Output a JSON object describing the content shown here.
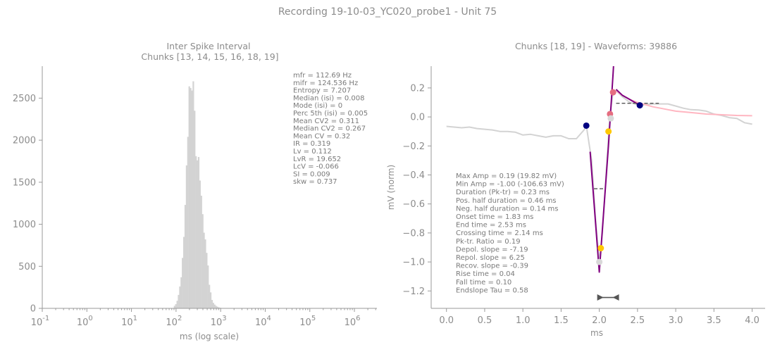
{
  "figure": {
    "title": "Recording 19-10-03_YC020_probe1 - Unit 75"
  },
  "chart_data": [
    {
      "type": "bar",
      "title": "Inter Spike Interval",
      "subtitle": "Chunks [13, 14, 15, 16, 18, 19]",
      "xlabel": "ms (log scale)",
      "ylabel": "",
      "xscale": "log",
      "xlim": [
        0.1,
        3200000
      ],
      "ylim": [
        0,
        2880
      ],
      "xtick_exponents": [
        "-1",
        "0",
        "1",
        "2",
        "3",
        "4",
        "5",
        "6"
      ],
      "yticks": [
        0,
        500,
        1000,
        1500,
        2000,
        2500
      ],
      "bar_color": "#d3d3d3",
      "bins_log10_ms": [
        1.95,
        1.98,
        2.01,
        2.04,
        2.07,
        2.1,
        2.13,
        2.16,
        2.19,
        2.22,
        2.25,
        2.28,
        2.31,
        2.34,
        2.37,
        2.4,
        2.43,
        2.46,
        2.49,
        2.52,
        2.55,
        2.58,
        2.61,
        2.64,
        2.67,
        2.7,
        2.73,
        2.76,
        2.79,
        2.82,
        2.85,
        2.88,
        2.91,
        2.94,
        2.97,
        3.0
      ],
      "counts": [
        30,
        50,
        90,
        160,
        260,
        370,
        600,
        850,
        1230,
        1700,
        2040,
        2640,
        2620,
        2590,
        2700,
        2350,
        1810,
        1760,
        1800,
        1520,
        1340,
        1120,
        900,
        820,
        660,
        510,
        280,
        190,
        100,
        65,
        45,
        30,
        20,
        12,
        8,
        5
      ],
      "stats": [
        "mfr = 112.69 Hz",
        "mifr = 124.536 Hz",
        "Entropy = 7.207",
        "Median (isi) = 0.008",
        "Mode (isi) = 0",
        "Perc 5th (isi) = 0.005",
        "Mean CV2 = 0.311",
        "Median CV2 = 0.267",
        "Mean CV = 0.32",
        "IR = 0.319",
        "Lv = 0.112",
        "LvR = 19.652",
        "LcV = -0.066",
        "SI = 0.009",
        "skw = 0.737"
      ]
    },
    {
      "type": "line",
      "title": "Chunks [18, 19] - Waveforms: 39886",
      "xlabel": "ms",
      "ylabel": "mV (norm)",
      "xlim": [
        -0.2,
        4.17
      ],
      "ylim": [
        -1.32,
        0.35
      ],
      "xticks": [
        0.0,
        0.5,
        1.0,
        1.5,
        2.0,
        2.5,
        3.0,
        3.5,
        4.0
      ],
      "yticks": [
        0.2,
        0.0,
        -0.2,
        -0.4,
        -0.6,
        -0.8,
        -1.0,
        -1.2
      ],
      "series": [
        {
          "color": "#d3d3d3",
          "x": [
            0.0,
            0.1,
            0.2,
            0.3,
            0.4,
            0.5,
            0.6,
            0.7,
            0.8,
            0.9,
            1.0,
            1.1,
            1.2,
            1.3,
            1.4,
            1.5,
            1.6,
            1.7,
            1.8,
            1.83,
            1.9,
            1.95,
            2.0,
            2.04,
            2.1,
            2.14,
            2.18,
            2.22,
            2.3,
            2.4,
            2.53,
            2.6,
            2.7,
            2.8,
            2.9,
            3.0,
            3.1,
            3.2,
            3.3,
            3.4,
            3.5,
            3.6,
            3.7,
            3.8,
            3.9,
            4.0
          ],
          "y": [
            -0.065,
            -0.07,
            -0.075,
            -0.07,
            -0.08,
            -0.085,
            -0.09,
            -0.1,
            -0.1,
            -0.105,
            -0.125,
            -0.12,
            -0.13,
            -0.14,
            -0.13,
            -0.13,
            -0.15,
            -0.15,
            -0.09,
            -0.06,
            -0.3,
            -0.7,
            -1.0,
            -0.8,
            -0.3,
            0.02,
            0.17,
            0.18,
            0.14,
            0.1,
            0.08,
            0.085,
            0.09,
            0.09,
            0.09,
            0.075,
            0.06,
            0.05,
            0.048,
            0.04,
            0.02,
            0.01,
            -0.005,
            -0.01,
            -0.04,
            -0.05
          ]
        },
        {
          "color": "#ffb6c1",
          "x": [
            2.22,
            2.3,
            2.4,
            2.5,
            2.6,
            2.7,
            2.8,
            2.9,
            3.0,
            3.2,
            3.4,
            3.6,
            3.8,
            4.0
          ],
          "y": [
            0.18,
            0.15,
            0.12,
            0.1,
            0.085,
            0.07,
            0.06,
            0.05,
            0.04,
            0.03,
            0.02,
            0.015,
            0.01,
            0.008
          ]
        },
        {
          "color": "#800080",
          "x": [
            1.88,
            2.0,
            2.12,
            2.18,
            2.22
          ],
          "y": [
            -0.24,
            -1.07,
            -0.2,
            0.3,
            0.66
          ]
        },
        {
          "color": "#800080",
          "x": [
            2.22,
            2.3,
            2.4,
            2.53
          ],
          "y": [
            0.19,
            0.15,
            0.12,
            0.08
          ]
        }
      ],
      "points": [
        {
          "x": 1.83,
          "y": -0.06,
          "color": "#000080"
        },
        {
          "x": 2.53,
          "y": 0.08,
          "color": "#000080"
        },
        {
          "x": 2.14,
          "y": 0.02,
          "color": "#e56d80"
        },
        {
          "x": 2.18,
          "y": 0.17,
          "color": "#e56d80"
        },
        {
          "x": 2.12,
          "y": -0.1,
          "color": "#ffc800"
        },
        {
          "x": 2.02,
          "y": -0.905,
          "color": "#ffc800"
        },
        {
          "x": 2.0,
          "y": -1.0,
          "color": "#d8d8d8"
        },
        {
          "x": 2.15,
          "y": -0.01,
          "color": "#d8d8d8"
        }
      ],
      "dashed_segments": [
        {
          "x": [
            1.93,
            2.07
          ],
          "y": [
            -0.495,
            -0.495
          ]
        },
        {
          "x": [
            2.22,
            2.78
          ],
          "y": [
            0.094,
            0.094
          ]
        }
      ],
      "duration_marker": {
        "x": [
          2.0,
          2.23
        ],
        "y": -1.245
      },
      "stats": [
        "Max Amp = 0.19 (19.82 mV)",
        "Min Amp = -1.00 (-106.63 mV)",
        "Duration (Pk-tr) = 0.23 ms",
        "Pos. half duration = 0.46 ms",
        "Neg. half duration = 0.14 ms",
        "Onset time = 1.83 ms",
        "End time = 2.53 ms",
        "Crossing time = 2.14 ms",
        "Pk-tr. Ratio = 0.19",
        "Depol. slope = -7.19",
        "Repol. slope = 6.25",
        "Recov. slope = -0.39",
        "Rise time = 0.04",
        "Fall time = 0.10",
        "Endslope Tau = 0.58"
      ]
    }
  ]
}
